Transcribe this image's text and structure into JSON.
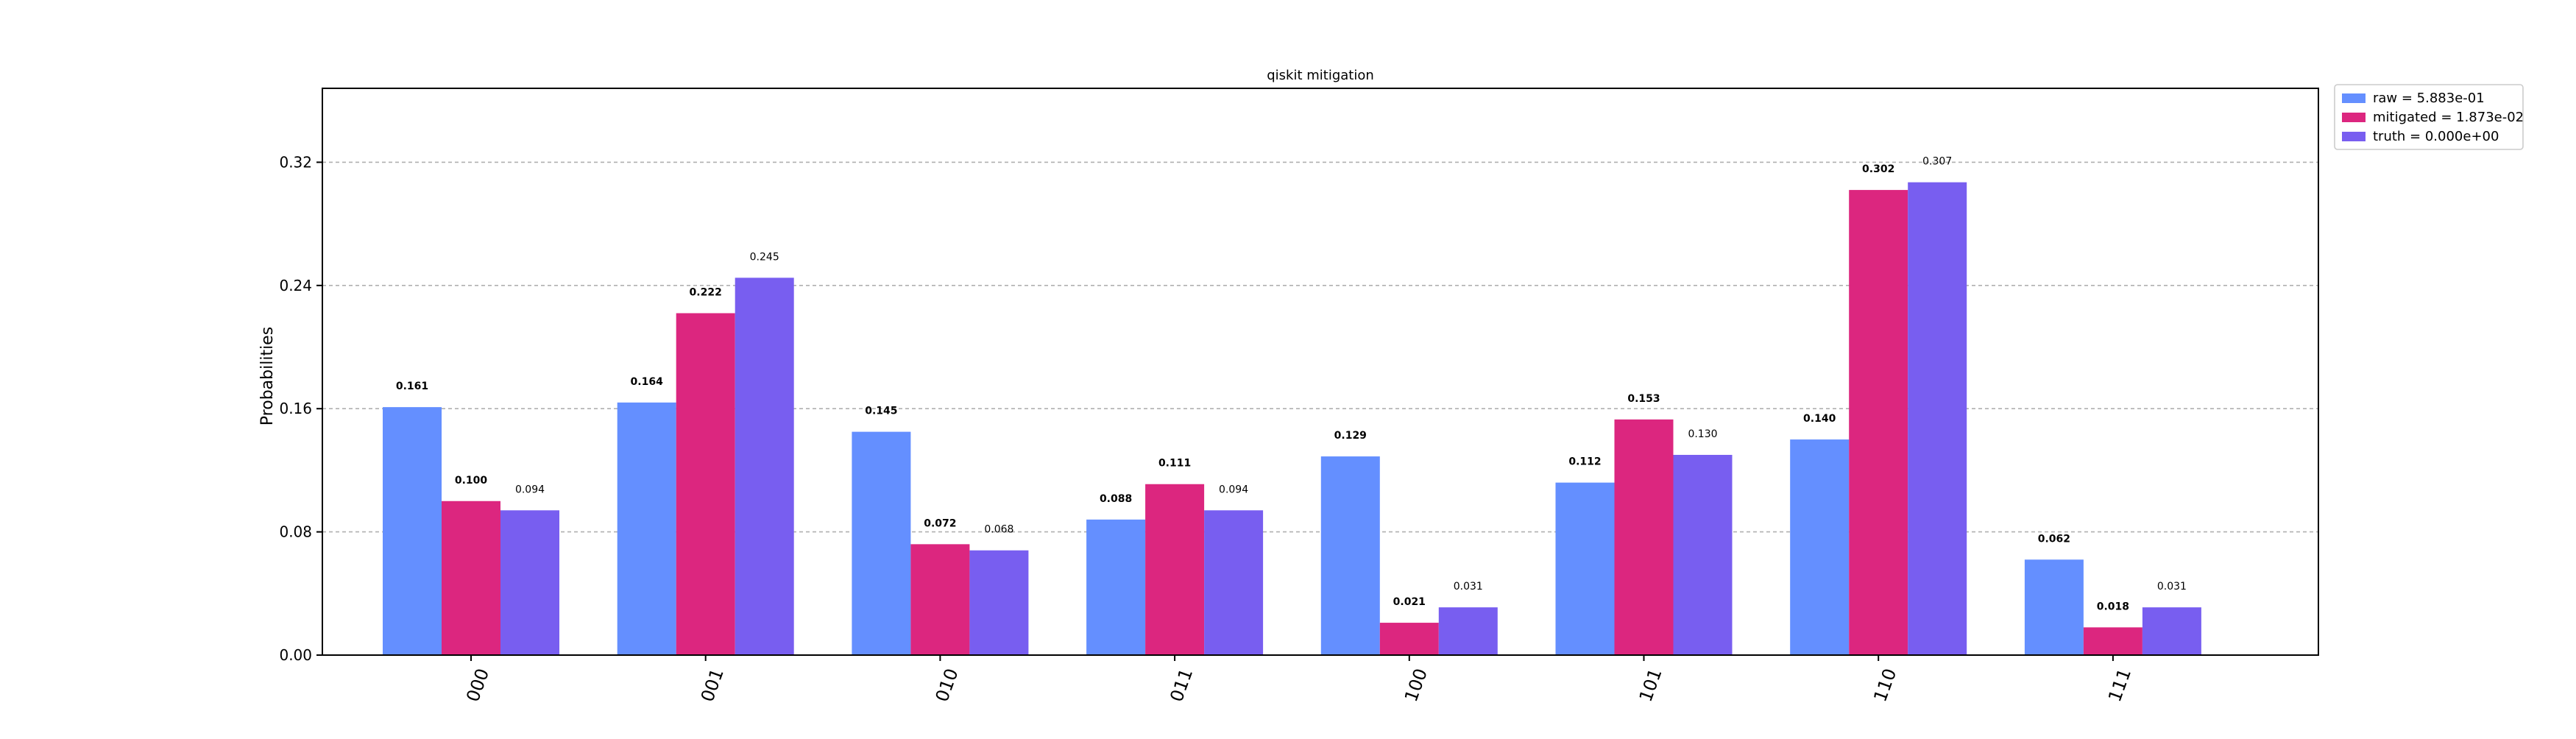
{
  "chart_data": {
    "type": "bar",
    "title": "qiskit mitigation",
    "xlabel": "",
    "ylabel": "Probabilities",
    "categories": [
      "000",
      "001",
      "010",
      "011",
      "100",
      "101",
      "110",
      "111"
    ],
    "ylim": [
      0,
      0.368
    ],
    "yticks": [
      "0.00",
      "0.08",
      "0.16",
      "0.24",
      "0.32"
    ],
    "ytick_values": [
      0,
      0.08,
      0.16,
      0.24,
      0.32
    ],
    "grid": "y-dashed",
    "legend_position": "outside-top-right",
    "series": [
      {
        "name": "raw = 5.883e-01",
        "color": "#648fff",
        "values": [
          0.161,
          0.164,
          0.145,
          0.088,
          0.129,
          0.112,
          0.14,
          0.062
        ],
        "labels": [
          "0.161",
          "0.164",
          "0.145",
          "0.088",
          "0.129",
          "0.112",
          "0.140",
          "0.062"
        ]
      },
      {
        "name": "mitigated = 1.873e-02",
        "color": "#dc267f",
        "values": [
          0.1,
          0.222,
          0.072,
          0.111,
          0.021,
          0.153,
          0.302,
          0.018
        ],
        "labels": [
          "0.100",
          "0.222",
          "0.072",
          "0.111",
          "0.021",
          "0.153",
          "0.302",
          "0.018"
        ]
      },
      {
        "name": "truth = 0.000e+00",
        "color": "#785ef0",
        "values": [
          0.094,
          0.245,
          0.068,
          0.094,
          0.031,
          0.13,
          0.307,
          0.031
        ],
        "labels": [
          "0.094",
          "0.245",
          "0.068",
          "0.094",
          "0.031",
          "0.130",
          "0.307",
          "0.031"
        ]
      }
    ]
  }
}
